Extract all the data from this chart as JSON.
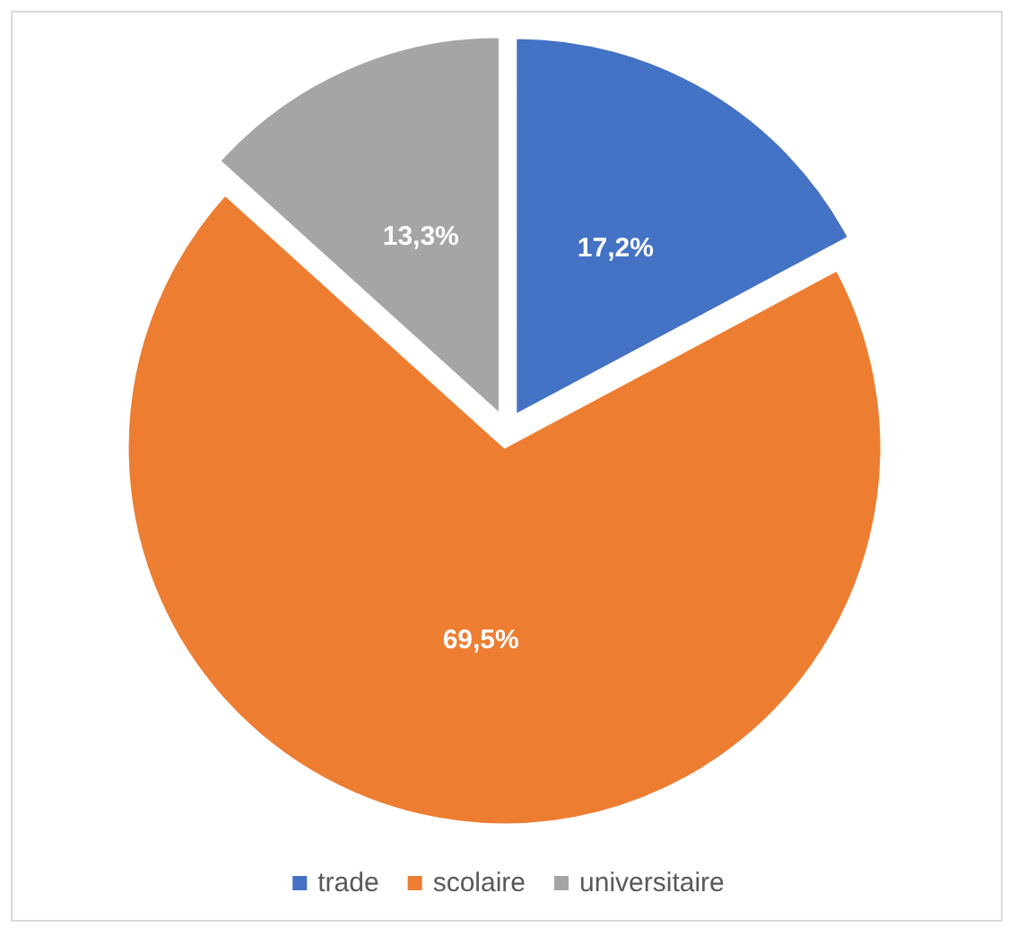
{
  "chart_data": {
    "type": "pie",
    "categories": [
      "trade",
      "scolaire",
      "universitaire"
    ],
    "values": [
      17.2,
      69.5,
      13.3
    ],
    "colors": [
      "#4472c4",
      "#ed7d31",
      "#a5a5a5"
    ],
    "value_labels": [
      "17,2%",
      "69,5%",
      "13,3%"
    ],
    "legend": "bottom"
  }
}
